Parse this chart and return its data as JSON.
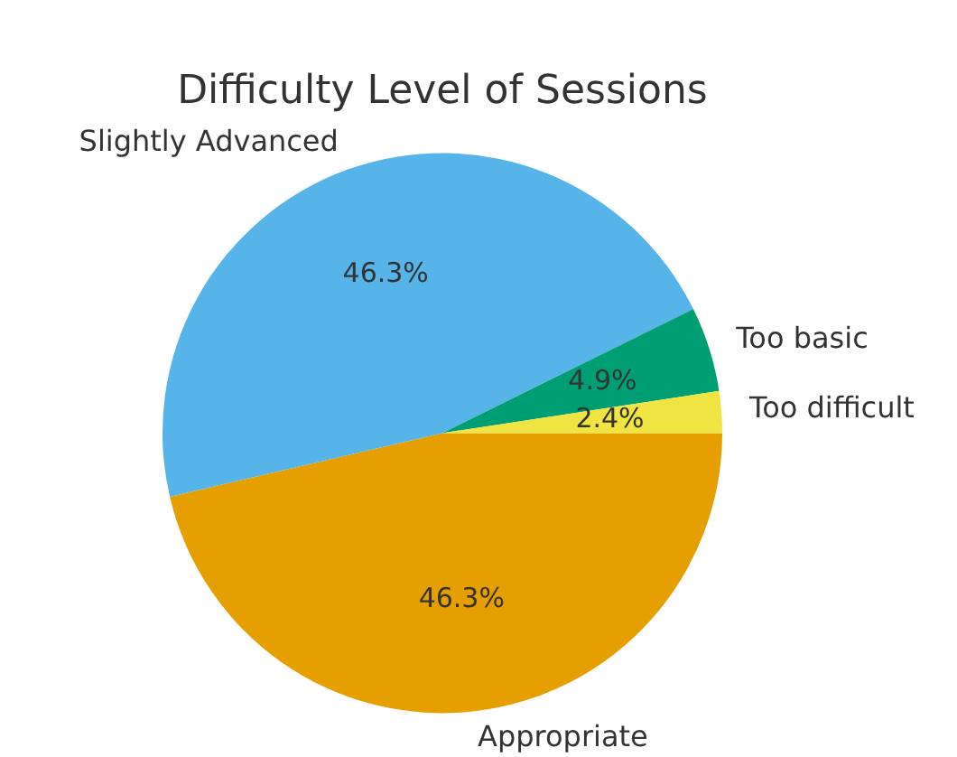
{
  "chart_data": {
    "type": "pie",
    "title": "Difficulty Level of Sessions",
    "categories": [
      "Appropriate",
      "Slightly Advanced",
      "Too basic",
      "Too difficult"
    ],
    "values": [
      46.3,
      46.3,
      4.9,
      2.4
    ],
    "colors": [
      "#e69f00",
      "#56b4e9",
      "#009e73",
      "#f0e442"
    ],
    "value_labels": [
      "46.3%",
      "46.3%",
      "4.9%",
      "2.4%"
    ],
    "legend": false
  }
}
